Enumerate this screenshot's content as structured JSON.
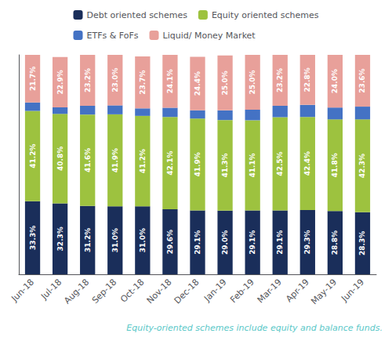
{
  "chart_data": {
    "type": "bar",
    "stacked": true,
    "categories": [
      "Jun-18",
      "Jul-18",
      "Aug-18",
      "Sep-18",
      "Oct-18",
      "Nov-18",
      "Dec-18",
      "Jan-19",
      "Feb-19",
      "Mar-19",
      "Apr-19",
      "May-19",
      "Jun-19"
    ],
    "series": [
      {
        "name": "Debt oriented schemes",
        "color": "#1a2e5a",
        "values": [
          33.3,
          32.3,
          31.2,
          31.0,
          31.0,
          29.6,
          29.1,
          29.0,
          29.1,
          29.1,
          29.3,
          28.8,
          28.3
        ],
        "value_labels": [
          "33.3%",
          "32.3%",
          "31.2%",
          "31.0%",
          "31.0%",
          "29.6%",
          "29.1%",
          "29.0%",
          "29.1%",
          "29.1%",
          "29.3%",
          "28.8%",
          "28.3%"
        ]
      },
      {
        "name": "Equity oriented schemes",
        "color": "#9dc23f",
        "values": [
          41.2,
          40.8,
          41.6,
          41.9,
          41.2,
          42.1,
          41.9,
          41.3,
          41.1,
          42.5,
          42.4,
          41.8,
          42.3
        ],
        "value_labels": [
          "41.2%",
          "40.8%",
          "41.6%",
          "41.9%",
          "41.2%",
          "42.1%",
          "41.9%",
          "41.3%",
          "41.1%",
          "42.5%",
          "42.4%",
          "41.8%",
          "42.3%"
        ]
      },
      {
        "name": "ETFs & FoFs",
        "color": "#4472c4",
        "values": [
          3.8,
          3.0,
          4.0,
          4.1,
          3.4,
          4.2,
          3.7,
          4.4,
          4.8,
          5.2,
          5.5,
          5.4,
          5.8
        ]
      },
      {
        "name": "Liquid/ Money Market",
        "color": "#e8a09a",
        "values": [
          21.7,
          22.9,
          23.2,
          23.0,
          23.7,
          24.1,
          24.4,
          25.0,
          25.0,
          23.2,
          22.8,
          24.0,
          23.6
        ],
        "value_labels": [
          "21.7%",
          "22.9%",
          "23.2%",
          "23.0%",
          "23.7%",
          "24.1%",
          "24.4%",
          "25.0%",
          "25.0%",
          "23.2%",
          "22.8%",
          "24.0%",
          "23.6%"
        ]
      }
    ],
    "ylim": [
      0,
      100
    ],
    "yticks": [],
    "tick_labels": "x",
    "grid": false,
    "legend": "top",
    "data_labels": true,
    "annotations": [
      {
        "text": "Equity-oriented schemes include equity and balance funds.",
        "color": "#5bc8c8"
      }
    ]
  }
}
